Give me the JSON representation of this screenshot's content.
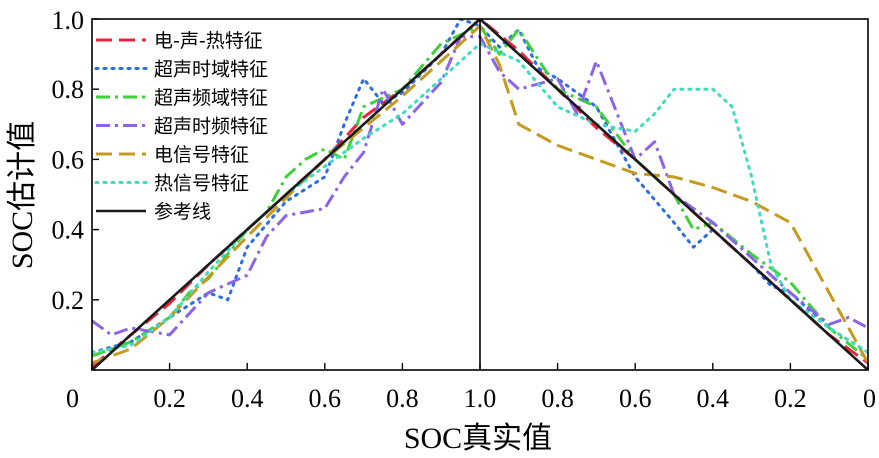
{
  "chart_data": {
    "type": "line",
    "xlabel": "SOC真实值",
    "ylabel": "SOC估计值",
    "x_ticks_left": [
      "0",
      "0.2",
      "0.4",
      "0.6",
      "0.8",
      "1.0"
    ],
    "x_ticks_right": [
      "0.8",
      "0.6",
      "0.4",
      "0.2",
      "0"
    ],
    "y_ticks": [
      "0.2",
      "0.4",
      "0.6",
      "0.8",
      "1.0"
    ],
    "xlim": [
      0,
      2
    ],
    "ylim": [
      0,
      1
    ],
    "x_note": "Charge-discharge cycle: x runs 0→1 (true SOC rising) then 1→0 (true SOC falling)",
    "legend_position": "top-left",
    "series": [
      {
        "name": "电-声-热特征",
        "color": "#e8253c",
        "style": "dash",
        "x": [
          0,
          0.1,
          0.2,
          0.3,
          0.4,
          0.5,
          0.6,
          0.7,
          0.8,
          0.9,
          1.0,
          1.1,
          1.2,
          1.3,
          1.4,
          1.5,
          1.6,
          1.7,
          1.8,
          1.9,
          2.0
        ],
        "y": [
          0.01,
          0.1,
          0.19,
          0.3,
          0.4,
          0.5,
          0.6,
          0.72,
          0.8,
          0.9,
          1.0,
          0.91,
          0.8,
          0.69,
          0.6,
          0.5,
          0.4,
          0.3,
          0.2,
          0.1,
          0.02
        ]
      },
      {
        "name": "超声时域特征",
        "color": "#2e6fe0",
        "style": "dot",
        "x": [
          0,
          0.1,
          0.2,
          0.3,
          0.35,
          0.4,
          0.5,
          0.6,
          0.65,
          0.7,
          0.75,
          0.8,
          0.9,
          0.95,
          1.0,
          1.05,
          1.1,
          1.15,
          1.2,
          1.3,
          1.4,
          1.5,
          1.55,
          1.6,
          1.7,
          1.75,
          1.8,
          1.9,
          2.0
        ],
        "y": [
          0.05,
          0.08,
          0.15,
          0.22,
          0.2,
          0.35,
          0.48,
          0.55,
          0.7,
          0.83,
          0.76,
          0.79,
          0.9,
          1.0,
          0.98,
          0.92,
          0.97,
          0.86,
          0.83,
          0.75,
          0.55,
          0.42,
          0.35,
          0.4,
          0.3,
          0.24,
          0.22,
          0.12,
          0.05
        ]
      },
      {
        "name": "超声频域特征",
        "color": "#3fd13a",
        "style": "dashdot",
        "x": [
          0,
          0.1,
          0.2,
          0.25,
          0.3,
          0.4,
          0.45,
          0.5,
          0.55,
          0.6,
          0.65,
          0.7,
          0.8,
          0.9,
          1.0,
          1.05,
          1.1,
          1.2,
          1.3,
          1.4,
          1.5,
          1.55,
          1.6,
          1.7,
          1.8,
          1.9,
          2.0
        ],
        "y": [
          0.04,
          0.08,
          0.15,
          0.22,
          0.26,
          0.4,
          0.45,
          0.55,
          0.6,
          0.63,
          0.6,
          0.75,
          0.8,
          0.93,
          0.98,
          0.9,
          0.97,
          0.8,
          0.75,
          0.6,
          0.5,
          0.4,
          0.42,
          0.33,
          0.25,
          0.12,
          0.03
        ]
      },
      {
        "name": "超声时频特征",
        "color": "#8b64e8",
        "style": "dashdot",
        "x": [
          0,
          0.05,
          0.1,
          0.2,
          0.3,
          0.4,
          0.45,
          0.5,
          0.6,
          0.65,
          0.7,
          0.75,
          0.8,
          0.9,
          0.95,
          1.0,
          1.05,
          1.1,
          1.2,
          1.25,
          1.3,
          1.4,
          1.45,
          1.5,
          1.6,
          1.7,
          1.8,
          1.9,
          1.95,
          2.0
        ],
        "y": [
          0.14,
          0.1,
          0.12,
          0.1,
          0.22,
          0.27,
          0.38,
          0.44,
          0.46,
          0.55,
          0.62,
          0.8,
          0.7,
          0.82,
          0.95,
          0.95,
          0.85,
          0.8,
          0.83,
          0.73,
          0.88,
          0.6,
          0.65,
          0.5,
          0.42,
          0.32,
          0.22,
          0.13,
          0.15,
          0.12
        ]
      },
      {
        "name": "电信号特征",
        "color": "#c59a1e",
        "style": "dash",
        "x": [
          0,
          0.1,
          0.2,
          0.4,
          0.6,
          0.8,
          0.9,
          1.0,
          1.05,
          1.1,
          1.2,
          1.3,
          1.4,
          1.5,
          1.6,
          1.7,
          1.8,
          1.9,
          2.0
        ],
        "y": [
          0.02,
          0.06,
          0.15,
          0.38,
          0.6,
          0.78,
          0.88,
          0.98,
          0.87,
          0.7,
          0.64,
          0.6,
          0.56,
          0.55,
          0.52,
          0.48,
          0.42,
          0.22,
          0.02
        ]
      },
      {
        "name": "热信号特征",
        "color": "#3fdcc0",
        "style": "dot",
        "x": [
          0,
          0.1,
          0.2,
          0.3,
          0.4,
          0.5,
          0.6,
          0.7,
          0.8,
          0.9,
          1.0,
          1.1,
          1.2,
          1.3,
          1.4,
          1.45,
          1.5,
          1.55,
          1.6,
          1.65,
          1.7,
          1.75,
          1.8,
          1.9,
          2.0
        ],
        "y": [
          0.05,
          0.07,
          0.15,
          0.28,
          0.4,
          0.5,
          0.58,
          0.66,
          0.73,
          0.83,
          0.93,
          0.88,
          0.75,
          0.7,
          0.68,
          0.73,
          0.8,
          0.8,
          0.8,
          0.75,
          0.55,
          0.3,
          0.2,
          0.12,
          0.05
        ]
      },
      {
        "name": "参考线",
        "color": "#1a1a1a",
        "style": "solid",
        "x": [
          0,
          1.0,
          2.0
        ],
        "y": [
          0,
          1.0,
          0
        ]
      }
    ]
  }
}
